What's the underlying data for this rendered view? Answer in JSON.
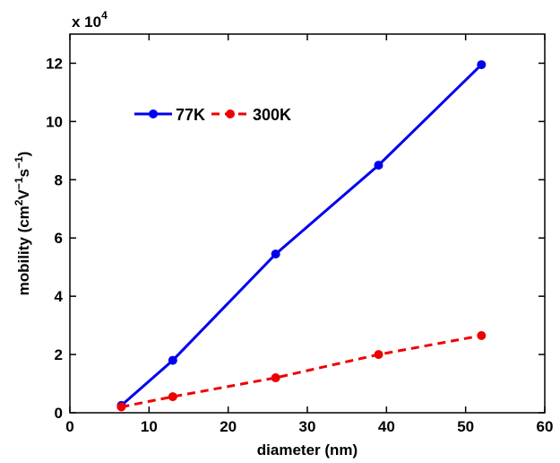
{
  "chart_data": {
    "type": "line",
    "xlabel": "diameter (nm)",
    "ylabel": {
      "prefix": "mobility (cm",
      "sup1": "2",
      "mid1": "V",
      "sup2": "−1",
      "mid2": "s",
      "sup3": "−1",
      "suffix": ")"
    },
    "y_multiplier": {
      "base": "x 10",
      "exponent": "4"
    },
    "xlim": [
      0,
      60
    ],
    "ylim": [
      0,
      13
    ],
    "xticks": [
      0,
      10,
      20,
      30,
      40,
      50,
      60
    ],
    "yticks": [
      0,
      2,
      4,
      6,
      8,
      10,
      12
    ],
    "x": [
      6.5,
      13,
      26,
      39,
      52
    ],
    "series": [
      {
        "name": "77K",
        "values": [
          0.25,
          1.8,
          5.45,
          8.5,
          11.95
        ],
        "color": "#0000ee",
        "style": "solid",
        "marker": "circle"
      },
      {
        "name": "300K",
        "values": [
          0.2,
          0.55,
          1.2,
          2.0,
          2.65
        ],
        "color": "#ee0000",
        "style": "dashed",
        "marker": "circle"
      }
    ],
    "legend_placement": "upper-left",
    "grid": false
  }
}
